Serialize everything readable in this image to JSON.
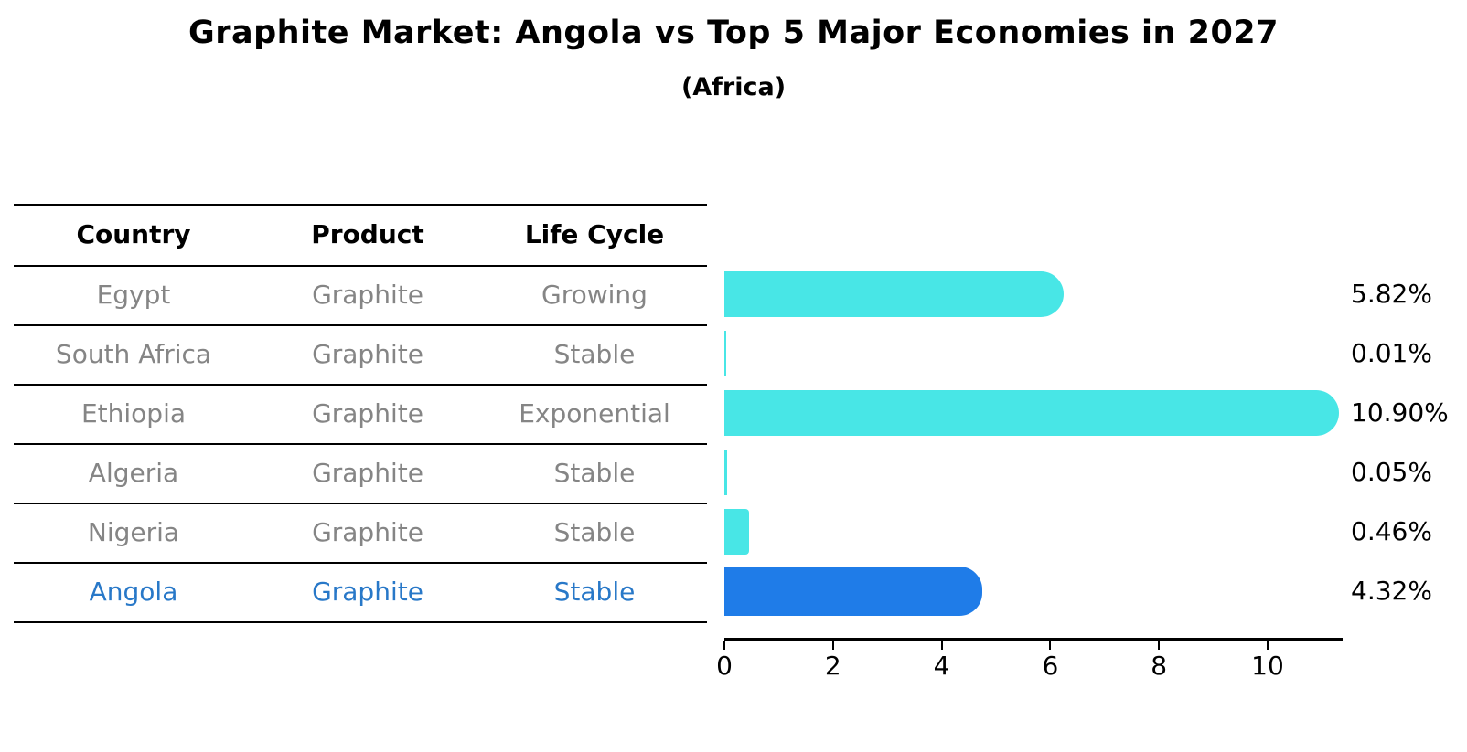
{
  "title": "Graphite Market: Angola vs Top 5 Major Economies in 2027",
  "subtitle": "(Africa)",
  "table": {
    "headers": {
      "country": "Country",
      "product": "Product",
      "life_cycle": "Life Cycle"
    },
    "rows": [
      {
        "country": "Egypt",
        "product": "Graphite",
        "life_cycle": "Growing",
        "highlight": false
      },
      {
        "country": "South Africa",
        "product": "Graphite",
        "life_cycle": "Stable",
        "highlight": false
      },
      {
        "country": "Ethiopia",
        "product": "Graphite",
        "life_cycle": "Exponential",
        "highlight": false
      },
      {
        "country": "Algeria",
        "product": "Graphite",
        "life_cycle": "Stable",
        "highlight": false
      },
      {
        "country": "Nigeria",
        "product": "Graphite",
        "life_cycle": "Stable",
        "highlight": false
      },
      {
        "country": "Angola",
        "product": "Graphite",
        "life_cycle": "Stable",
        "highlight": true
      }
    ]
  },
  "chart_data": {
    "type": "bar",
    "orientation": "horizontal",
    "title": "Graphite Market: Angola vs Top 5 Major Economies in 2027",
    "subtitle": "(Africa)",
    "categories": [
      "Egypt",
      "South Africa",
      "Ethiopia",
      "Algeria",
      "Nigeria",
      "Angola"
    ],
    "values": [
      5.82,
      0.01,
      10.9,
      0.05,
      0.46,
      4.32
    ],
    "value_labels": [
      "5.82%",
      "0.01%",
      "10.90%",
      "0.05%",
      "0.46%",
      "4.32%"
    ],
    "x_tick_values": [
      0,
      2,
      4,
      6,
      8,
      10
    ],
    "x_tick_labels": [
      "0",
      "2",
      "4",
      "6",
      "8",
      "10"
    ],
    "xlim": [
      0,
      11.4
    ],
    "grid": false,
    "legend": false,
    "bar_color": "#48E6E6",
    "highlight_bar_color": "#1F7CE8",
    "highlight_index": 5
  },
  "colors": {
    "row_text": "#858585",
    "highlight_text": "#2878C8",
    "header_text": "#000000",
    "line": "#000000",
    "background": "#FFFFFF"
  }
}
